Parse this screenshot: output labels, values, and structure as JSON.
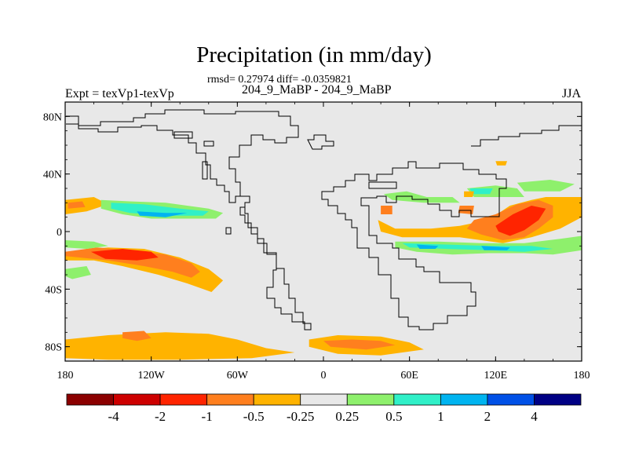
{
  "title": "Precipitation (in mm/day)",
  "stats": "rmsd= 0.27974 diff= -0.0359821",
  "case": "204_9_MaBP - 204_9_MaBP",
  "experiment": "Expt = texVp1-texVp",
  "season": "JJA",
  "chart_data": {
    "type": "heatmap",
    "projection": "cylindrical equidistant",
    "lon_range": [
      -180,
      180
    ],
    "lat_range": [
      -90,
      90
    ],
    "lat_ticks": [
      {
        "value": 80,
        "label": "80N"
      },
      {
        "value": 40,
        "label": "40N"
      },
      {
        "value": 0,
        "label": "0"
      },
      {
        "value": -40,
        "label": "40S"
      },
      {
        "value": -80,
        "label": "80S"
      }
    ],
    "lon_ticks": [
      {
        "value": -180,
        "label": "180"
      },
      {
        "value": -120,
        "label": "120W"
      },
      {
        "value": -60,
        "label": "60W"
      },
      {
        "value": 0,
        "label": "0"
      },
      {
        "value": 60,
        "label": "60E"
      },
      {
        "value": 120,
        "label": "120E"
      },
      {
        "value": 180,
        "label": "180"
      }
    ],
    "colorbar": {
      "colors": [
        "#8b0000",
        "#cd0000",
        "#ff2400",
        "#ff7f1e",
        "#ffb300",
        "#e8e8e8",
        "#8ef06c",
        "#30f0c8",
        "#00b4f0",
        "#0050e6",
        "#000084"
      ],
      "labels": [
        "-4",
        "-2",
        "-1",
        "-0.5",
        "-0.25",
        "0.25",
        "0.5",
        "1",
        "2",
        "4"
      ]
    },
    "regions": [
      {
        "level": "-0.25",
        "points": [
          [
            -180,
            -14
          ],
          [
            -150,
            -11
          ],
          [
            -125,
            -12
          ],
          [
            -100,
            -18
          ],
          [
            -80,
            -26
          ],
          [
            -70,
            -34
          ],
          [
            -78,
            -42
          ],
          [
            -95,
            -36
          ],
          [
            -115,
            -30
          ],
          [
            -140,
            -24
          ],
          [
            -160,
            -20
          ],
          [
            -180,
            -20
          ]
        ]
      },
      {
        "level": "-0.5",
        "points": [
          [
            -180,
            -14
          ],
          [
            -158,
            -11
          ],
          [
            -135,
            -13
          ],
          [
            -110,
            -16
          ],
          [
            -92,
            -22
          ],
          [
            -86,
            -28
          ],
          [
            -92,
            -32
          ],
          [
            -105,
            -28
          ],
          [
            -125,
            -24
          ],
          [
            -150,
            -20
          ],
          [
            -170,
            -18
          ],
          [
            -180,
            -17
          ]
        ]
      },
      {
        "level": "-1",
        "points": [
          [
            -162,
            -14
          ],
          [
            -140,
            -12
          ],
          [
            -120,
            -14
          ],
          [
            -115,
            -18
          ],
          [
            -130,
            -20
          ],
          [
            -152,
            -19
          ]
        ]
      },
      {
        "level": "-0.25",
        "points": [
          [
            -180,
            22
          ],
          [
            -160,
            24
          ],
          [
            -150,
            19
          ],
          [
            -165,
            14
          ],
          [
            -180,
            12
          ]
        ]
      },
      {
        "level": "-0.5",
        "points": [
          [
            -178,
            20
          ],
          [
            -168,
            21
          ],
          [
            -166,
            17
          ],
          [
            -178,
            16
          ]
        ]
      },
      {
        "level": "-0.25",
        "points": [
          [
            -180,
            -75
          ],
          [
            -150,
            -72
          ],
          [
            -110,
            -70
          ],
          [
            -80,
            -71
          ],
          [
            -60,
            -75
          ],
          [
            -40,
            -81
          ],
          [
            -20,
            -84
          ],
          [
            -50,
            -88
          ],
          [
            -100,
            -89
          ],
          [
            -150,
            -89
          ],
          [
            -180,
            -88
          ]
        ]
      },
      {
        "level": "-0.5",
        "points": [
          [
            -140,
            -70
          ],
          [
            -125,
            -69
          ],
          [
            -120,
            -74
          ],
          [
            -130,
            -76
          ],
          [
            -140,
            -74
          ]
        ]
      },
      {
        "level": "-0.25",
        "points": [
          [
            -10,
            -75
          ],
          [
            10,
            -72
          ],
          [
            40,
            -73
          ],
          [
            60,
            -77
          ],
          [
            70,
            -82
          ],
          [
            40,
            -86
          ],
          [
            10,
            -85
          ],
          [
            -10,
            -80
          ]
        ]
      },
      {
        "level": "-0.5",
        "points": [
          [
            0,
            -76
          ],
          [
            20,
            -75
          ],
          [
            40,
            -76
          ],
          [
            50,
            -79
          ],
          [
            30,
            -82
          ],
          [
            5,
            -80
          ]
        ]
      },
      {
        "level": "0.25",
        "points": [
          [
            -155,
            22
          ],
          [
            -135,
            21
          ],
          [
            -110,
            20
          ],
          [
            -95,
            18
          ],
          [
            -80,
            16
          ],
          [
            -70,
            13
          ],
          [
            -75,
            9
          ],
          [
            -95,
            9
          ],
          [
            -120,
            9
          ],
          [
            -140,
            12
          ],
          [
            -155,
            16
          ]
        ]
      },
      {
        "level": "0.5",
        "points": [
          [
            -148,
            20
          ],
          [
            -125,
            19
          ],
          [
            -100,
            16
          ],
          [
            -80,
            14
          ],
          [
            -84,
            11
          ],
          [
            -110,
            11
          ],
          [
            -135,
            13
          ],
          [
            -148,
            16
          ]
        ]
      },
      {
        "level": "1",
        "points": [
          [
            -130,
            14
          ],
          [
            -110,
            13
          ],
          [
            -95,
            13
          ],
          [
            -110,
            10
          ],
          [
            -128,
            11
          ]
        ]
      },
      {
        "level": "0.25",
        "points": [
          [
            -180,
            -6
          ],
          [
            -160,
            -7
          ],
          [
            -150,
            -10
          ],
          [
            -165,
            -12
          ],
          [
            -180,
            -11
          ]
        ]
      },
      {
        "level": "0.25",
        "points": [
          [
            -180,
            -26
          ],
          [
            -165,
            -24
          ],
          [
            -162,
            -30
          ],
          [
            -175,
            -33
          ],
          [
            -180,
            -31
          ]
        ]
      },
      {
        "level": "-0.25",
        "points": [
          [
            38,
            8
          ],
          [
            50,
            2
          ],
          [
            75,
            2
          ],
          [
            95,
            4
          ],
          [
            115,
            8
          ],
          [
            130,
            18
          ],
          [
            145,
            22
          ],
          [
            155,
            24
          ],
          [
            180,
            24
          ],
          [
            180,
            10
          ],
          [
            165,
            2
          ],
          [
            145,
            -4
          ],
          [
            125,
            -8
          ],
          [
            110,
            -6
          ],
          [
            95,
            -4
          ],
          [
            70,
            -4
          ],
          [
            55,
            -4
          ],
          [
            40,
            0
          ]
        ]
      },
      {
        "level": "-0.5",
        "points": [
          [
            105,
            8
          ],
          [
            120,
            12
          ],
          [
            135,
            19
          ],
          [
            150,
            22
          ],
          [
            160,
            18
          ],
          [
            160,
            10
          ],
          [
            150,
            2
          ],
          [
            140,
            -4
          ],
          [
            125,
            -6
          ],
          [
            110,
            -2
          ],
          [
            100,
            2
          ]
        ]
      },
      {
        "level": "-1",
        "points": [
          [
            120,
            4
          ],
          [
            132,
            12
          ],
          [
            145,
            18
          ],
          [
            155,
            16
          ],
          [
            150,
            8
          ],
          [
            140,
            1
          ],
          [
            130,
            -3
          ],
          [
            122,
            0
          ]
        ]
      },
      {
        "level": "-0.5",
        "points": [
          [
            40,
            18
          ],
          [
            48,
            18
          ],
          [
            48,
            12
          ],
          [
            40,
            12
          ]
        ]
      },
      {
        "level": "-0.5",
        "points": [
          [
            95,
            18
          ],
          [
            105,
            18
          ],
          [
            104,
            12
          ],
          [
            94,
            13
          ]
        ]
      },
      {
        "level": "0.25",
        "points": [
          [
            50,
            -7
          ],
          [
            80,
            -7
          ],
          [
            110,
            -8
          ],
          [
            140,
            -8
          ],
          [
            165,
            -5
          ],
          [
            180,
            -3
          ],
          [
            180,
            -13
          ],
          [
            160,
            -16
          ],
          [
            140,
            -15
          ],
          [
            115,
            -15
          ],
          [
            90,
            -16
          ],
          [
            65,
            -14
          ],
          [
            50,
            -11
          ]
        ]
      },
      {
        "level": "0.5",
        "points": [
          [
            55,
            -8
          ],
          [
            85,
            -9
          ],
          [
            115,
            -10
          ],
          [
            145,
            -10
          ],
          [
            160,
            -12
          ],
          [
            140,
            -14
          ],
          [
            115,
            -13
          ],
          [
            85,
            -12
          ],
          [
            60,
            -11
          ]
        ]
      },
      {
        "level": "1",
        "points": [
          [
            65,
            -9
          ],
          [
            80,
            -10
          ],
          [
            78,
            -12
          ],
          [
            67,
            -12
          ]
        ]
      },
      {
        "level": "1",
        "points": [
          [
            110,
            -10
          ],
          [
            130,
            -11
          ],
          [
            128,
            -13
          ],
          [
            112,
            -13
          ]
        ]
      },
      {
        "level": "0.25",
        "points": [
          [
            100,
            30
          ],
          [
            120,
            32
          ],
          [
            135,
            30
          ],
          [
            140,
            24
          ],
          [
            120,
            24
          ],
          [
            105,
            24
          ]
        ]
      },
      {
        "level": "0.25",
        "points": [
          [
            42,
            26
          ],
          [
            58,
            28
          ],
          [
            72,
            24
          ],
          [
            90,
            24
          ],
          [
            95,
            20
          ],
          [
            70,
            20
          ],
          [
            48,
            22
          ]
        ]
      },
      {
        "level": "0.5",
        "points": [
          [
            102,
            30
          ],
          [
            118,
            30
          ],
          [
            116,
            26
          ],
          [
            104,
            26
          ]
        ]
      },
      {
        "level": "0.25",
        "points": [
          [
            135,
            34
          ],
          [
            158,
            36
          ],
          [
            175,
            33
          ],
          [
            165,
            28
          ],
          [
            140,
            28
          ]
        ]
      },
      {
        "level": "-0.25",
        "points": [
          [
            120,
            49
          ],
          [
            128,
            49
          ],
          [
            127,
            46
          ],
          [
            121,
            46
          ]
        ]
      },
      {
        "level": "-0.25",
        "points": [
          [
            98,
            28
          ],
          [
            105,
            28
          ],
          [
            104,
            24
          ],
          [
            98,
            24
          ]
        ]
      }
    ]
  }
}
